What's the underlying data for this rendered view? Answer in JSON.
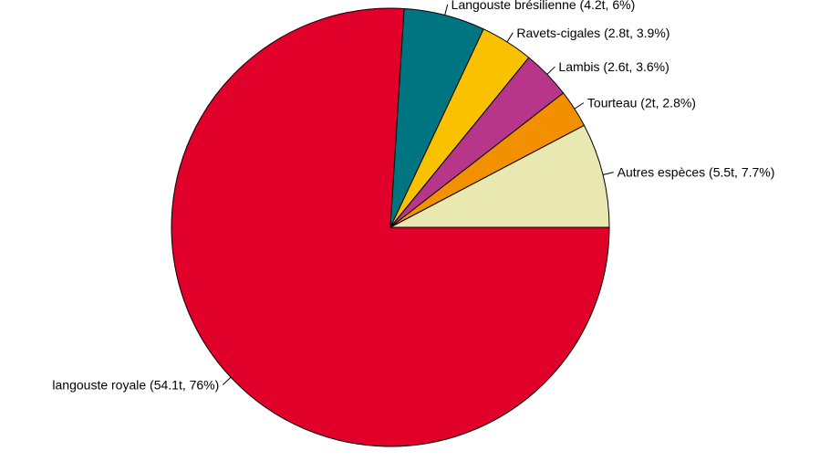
{
  "chart_data": {
    "type": "pie",
    "title": "",
    "slices": [
      {
        "label": "langouste royale (54.1t, 76%)",
        "value": 54.1,
        "percent": 76,
        "color": "#e0002a"
      },
      {
        "label": "Langouste brésilienne (4.2t, 6%)",
        "value": 4.2,
        "percent": 6,
        "color": "#007582"
      },
      {
        "label": "Ravets-cigales (2.8t, 3.9%)",
        "value": 2.8,
        "percent": 3.9,
        "color": "#f9c100"
      },
      {
        "label": "Lambis (2.6t, 3.6%)",
        "value": 2.6,
        "percent": 3.6,
        "color": "#b8368a"
      },
      {
        "label": "Tourteau (2t, 2.8%)",
        "value": 2.0,
        "percent": 2.8,
        "color": "#f39000"
      },
      {
        "label": "Autres espèces (5.5t, 7.7%)",
        "value": 5.5,
        "percent": 7.7,
        "color": "#e8e8b0"
      }
    ],
    "start": "3 o'clock",
    "direction": "clockwise",
    "legend": "none"
  }
}
